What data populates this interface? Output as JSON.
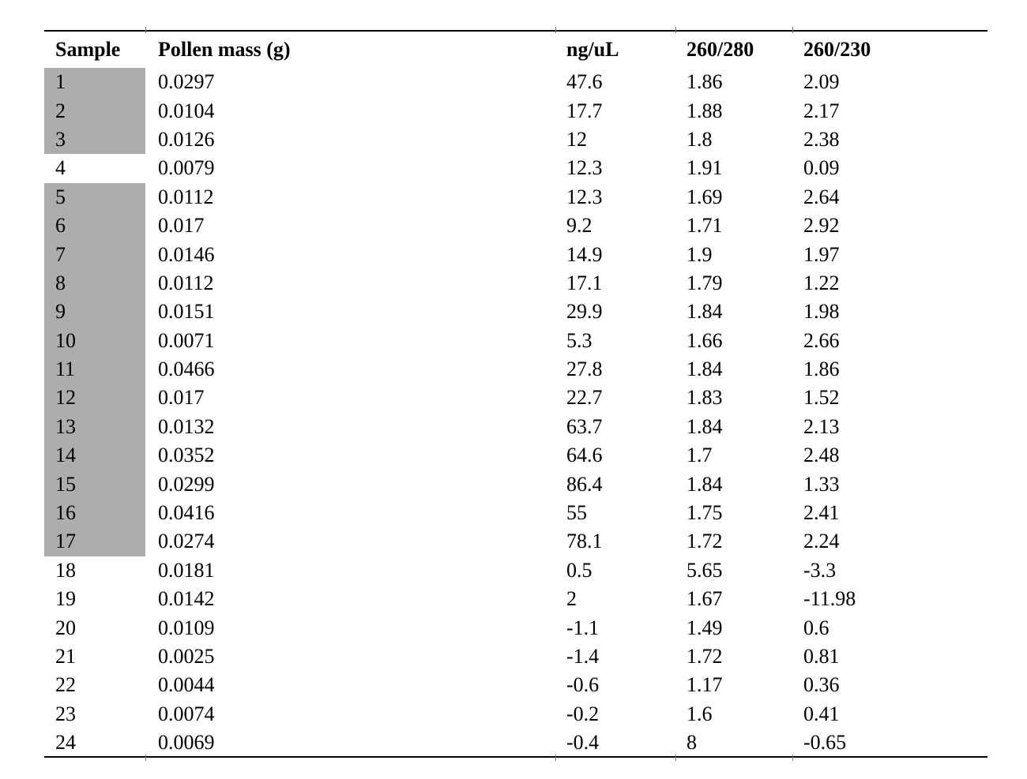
{
  "table": {
    "columns": [
      "Sample",
      "Pollen mass (g)",
      "ng/uL",
      "260/280",
      "260/230"
    ],
    "shaded_color": "#adadad",
    "rows": [
      {
        "sample": "1",
        "mass": "0.0297",
        "ng_ul": "47.6",
        "a260_280": "1.86",
        "a260_230": "2.09",
        "shaded": true
      },
      {
        "sample": "2",
        "mass": "0.0104",
        "ng_ul": "17.7",
        "a260_280": "1.88",
        "a260_230": "2.17",
        "shaded": true
      },
      {
        "sample": "3",
        "mass": "0.0126",
        "ng_ul": "12",
        "a260_280": "1.8",
        "a260_230": "2.38",
        "shaded": true
      },
      {
        "sample": "4",
        "mass": "0.0079",
        "ng_ul": "12.3",
        "a260_280": "1.91",
        "a260_230": "0.09",
        "shaded": false
      },
      {
        "sample": "5",
        "mass": "0.0112",
        "ng_ul": "12.3",
        "a260_280": "1.69",
        "a260_230": "2.64",
        "shaded": true
      },
      {
        "sample": "6",
        "mass": "0.017",
        "ng_ul": "9.2",
        "a260_280": "1.71",
        "a260_230": "2.92",
        "shaded": true
      },
      {
        "sample": "7",
        "mass": "0.0146",
        "ng_ul": "14.9",
        "a260_280": "1.9",
        "a260_230": "1.97",
        "shaded": true
      },
      {
        "sample": "8",
        "mass": "0.0112",
        "ng_ul": "17.1",
        "a260_280": "1.79",
        "a260_230": "1.22",
        "shaded": true
      },
      {
        "sample": "9",
        "mass": "0.0151",
        "ng_ul": "29.9",
        "a260_280": "1.84",
        "a260_230": "1.98",
        "shaded": true
      },
      {
        "sample": "10",
        "mass": "0.0071",
        "ng_ul": "5.3",
        "a260_280": "1.66",
        "a260_230": "2.66",
        "shaded": true
      },
      {
        "sample": "11",
        "mass": "0.0466",
        "ng_ul": "27.8",
        "a260_280": "1.84",
        "a260_230": "1.86",
        "shaded": true
      },
      {
        "sample": "12",
        "mass": "0.017",
        "ng_ul": "22.7",
        "a260_280": "1.83",
        "a260_230": "1.52",
        "shaded": true
      },
      {
        "sample": "13",
        "mass": "0.0132",
        "ng_ul": "63.7",
        "a260_280": "1.84",
        "a260_230": "2.13",
        "shaded": true
      },
      {
        "sample": "14",
        "mass": "0.0352",
        "ng_ul": "64.6",
        "a260_280": "1.7",
        "a260_230": "2.48",
        "shaded": true
      },
      {
        "sample": "15",
        "mass": "0.0299",
        "ng_ul": "86.4",
        "a260_280": "1.84",
        "a260_230": "1.33",
        "shaded": true
      },
      {
        "sample": "16",
        "mass": "0.0416",
        "ng_ul": "55",
        "a260_280": "1.75",
        "a260_230": "2.41",
        "shaded": true
      },
      {
        "sample": "17",
        "mass": "0.0274",
        "ng_ul": "78.1",
        "a260_280": "1.72",
        "a260_230": "2.24",
        "shaded": true
      },
      {
        "sample": "18",
        "mass": "0.0181",
        "ng_ul": "0.5",
        "a260_280": "5.65",
        "a260_230": "-3.3",
        "shaded": false
      },
      {
        "sample": "19",
        "mass": "0.0142",
        "ng_ul": "2",
        "a260_280": "1.67",
        "a260_230": "-11.98",
        "shaded": false
      },
      {
        "sample": "20",
        "mass": "0.0109",
        "ng_ul": "-1.1",
        "a260_280": "1.49",
        "a260_230": "0.6",
        "shaded": false
      },
      {
        "sample": "21",
        "mass": "0.0025",
        "ng_ul": "-1.4",
        "a260_280": "1.72",
        "a260_230": "0.81",
        "shaded": false
      },
      {
        "sample": "22",
        "mass": "0.0044",
        "ng_ul": "-0.6",
        "a260_280": "1.17",
        "a260_230": "0.36",
        "shaded": false
      },
      {
        "sample": "23",
        "mass": "0.0074",
        "ng_ul": "-0.2",
        "a260_280": "1.6",
        "a260_230": "0.41",
        "shaded": false
      },
      {
        "sample": "24",
        "mass": "0.0069",
        "ng_ul": "-0.4",
        "a260_280": "8",
        "a260_230": "-0.65",
        "shaded": false
      }
    ]
  }
}
